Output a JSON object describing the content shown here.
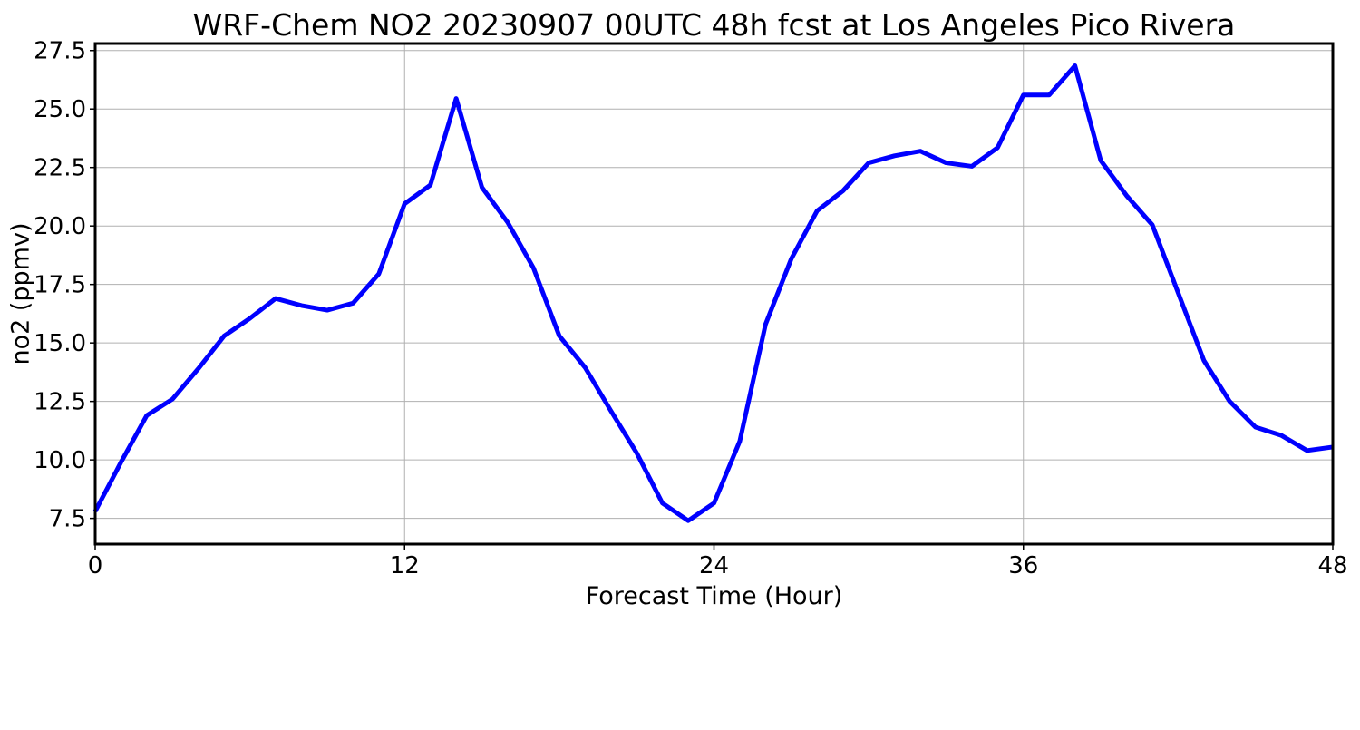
{
  "chart_data": {
    "type": "line",
    "title": "WRF-Chem NO2  20230907 00UTC 48h fcst at Los Angeles Pico Rivera",
    "xlabel": "Forecast Time (Hour)",
    "ylabel": "no2  (ppmv)",
    "xlim": [
      0,
      48
    ],
    "ylim": [
      6.4,
      27.8
    ],
    "xticks": [
      0,
      12,
      24,
      36,
      48
    ],
    "xtick_labels": [
      "0",
      "12",
      "24",
      "36",
      "48"
    ],
    "yticks": [
      7.5,
      10.0,
      12.5,
      15.0,
      17.5,
      20.0,
      22.5,
      25.0,
      27.5
    ],
    "ytick_labels": [
      "7.5",
      "10.0",
      "12.5",
      "15.0",
      "17.5",
      "20.0",
      "22.5",
      "25.0",
      "27.5"
    ],
    "grid": true,
    "series": [
      {
        "color": "#0000ff",
        "x": [
          0,
          1,
          2,
          3,
          4,
          5,
          6,
          7,
          8,
          9,
          10,
          11,
          12,
          13,
          14,
          15,
          16,
          17,
          18,
          19,
          20,
          21,
          22,
          23,
          24,
          25,
          26,
          27,
          28,
          29,
          30,
          31,
          32,
          33,
          34,
          35,
          36,
          37,
          38,
          39,
          40,
          41,
          42,
          43,
          44,
          45,
          46,
          47,
          48
        ],
        "values": [
          7.8,
          9.9,
          11.9,
          12.6,
          13.9,
          15.3,
          16.05,
          16.9,
          16.6,
          16.4,
          16.7,
          17.95,
          20.95,
          21.75,
          25.45,
          21.65,
          20.15,
          18.2,
          15.3,
          13.95,
          12.1,
          10.3,
          8.15,
          7.4,
          8.15,
          10.8,
          15.8,
          18.6,
          20.65,
          21.5,
          22.7,
          23.0,
          23.2,
          22.7,
          22.55,
          23.35,
          25.6,
          25.6,
          26.85,
          22.8,
          21.3,
          20.05,
          17.15,
          14.25,
          12.5,
          11.4,
          11.05,
          10.4,
          10.55
        ]
      }
    ]
  }
}
